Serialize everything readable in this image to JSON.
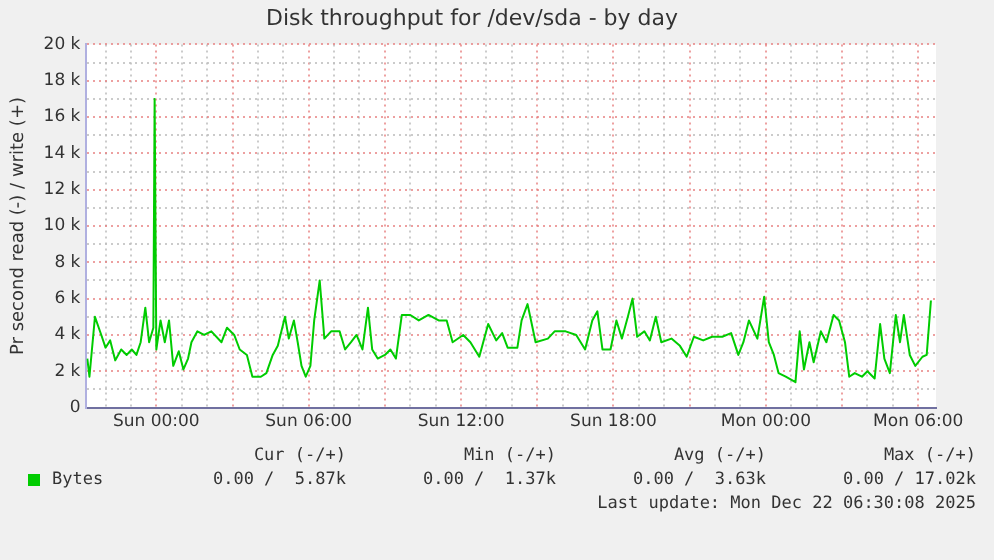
{
  "chart_data": {
    "type": "line",
    "title": "Disk throughput for /dev/sda - by day",
    "ylabel": "Pr second read (-) / write (+)",
    "x": [
      "2025-12-20T21:17",
      "2025-12-20T21:22",
      "2025-12-20T21:35",
      "2025-12-20T21:50",
      "2025-12-20T22:00",
      "2025-12-20T22:11",
      "2025-12-20T22:23",
      "2025-12-20T22:37",
      "2025-12-20T22:50",
      "2025-12-20T23:02",
      "2025-12-20T23:13",
      "2025-12-20T23:23",
      "2025-12-20T23:34",
      "2025-12-20T23:43",
      "2025-12-20T23:53",
      "2025-12-20T23:56",
      "2025-12-21T00:00",
      "2025-12-21T00:10",
      "2025-12-21T00:20",
      "2025-12-21T00:30",
      "2025-12-21T00:40",
      "2025-12-21T00:53",
      "2025-12-21T01:04",
      "2025-12-21T01:15",
      "2025-12-21T01:23",
      "2025-12-21T01:37",
      "2025-12-21T01:53",
      "2025-12-21T02:10",
      "2025-12-21T02:34",
      "2025-12-21T02:47",
      "2025-12-21T03:04",
      "2025-12-21T03:17",
      "2025-12-21T03:34",
      "2025-12-21T03:47",
      "2025-12-21T04:07",
      "2025-12-21T04:20",
      "2025-12-21T04:35",
      "2025-12-21T04:47",
      "2025-12-21T05:04",
      "2025-12-21T05:13",
      "2025-12-21T05:25",
      "2025-12-21T05:34",
      "2025-12-21T05:43",
      "2025-12-21T05:53",
      "2025-12-21T06:04",
      "2025-12-21T06:13",
      "2025-12-21T06:26",
      "2025-12-21T06:37",
      "2025-12-21T06:53",
      "2025-12-21T07:13",
      "2025-12-21T07:26",
      "2025-12-21T07:40",
      "2025-12-21T07:53",
      "2025-12-21T08:07",
      "2025-12-21T08:20",
      "2025-12-21T08:30",
      "2025-12-21T08:43",
      "2025-12-21T09:00",
      "2025-12-21T09:13",
      "2025-12-21T09:26",
      "2025-12-21T09:40",
      "2025-12-21T10:00",
      "2025-12-21T10:20",
      "2025-12-21T10:43",
      "2025-12-21T11:07",
      "2025-12-21T11:26",
      "2025-12-21T11:40",
      "2025-12-21T12:05",
      "2025-12-21T12:22",
      "2025-12-21T12:43",
      "2025-12-21T13:04",
      "2025-12-21T13:23",
      "2025-12-21T13:37",
      "2025-12-21T13:50",
      "2025-12-21T14:13",
      "2025-12-21T14:23",
      "2025-12-21T14:37",
      "2025-12-21T14:47",
      "2025-12-21T14:56",
      "2025-12-21T15:25",
      "2025-12-21T15:41",
      "2025-12-21T16:07",
      "2025-12-21T16:32",
      "2025-12-21T16:53",
      "2025-12-21T17:10",
      "2025-12-21T17:22",
      "2025-12-21T17:34",
      "2025-12-21T17:53",
      "2025-12-21T18:07",
      "2025-12-21T18:20",
      "2025-12-21T18:34",
      "2025-12-21T18:45",
      "2025-12-21T18:56",
      "2025-12-21T19:13",
      "2025-12-21T19:26",
      "2025-12-21T19:40",
      "2025-12-21T19:53",
      "2025-12-21T20:17",
      "2025-12-21T20:37",
      "2025-12-21T20:53",
      "2025-12-21T21:10",
      "2025-12-21T21:32",
      "2025-12-21T21:53",
      "2025-12-21T22:17",
      "2025-12-21T22:38",
      "2025-12-21T22:55",
      "2025-12-21T23:07",
      "2025-12-21T23:20",
      "2025-12-21T23:40",
      "2025-12-21T23:56",
      "2025-12-22T00:07",
      "2025-12-22T00:19",
      "2025-12-22T00:30",
      "2025-12-22T00:47",
      "2025-12-22T01:10",
      "2025-12-22T01:20",
      "2025-12-22T01:30",
      "2025-12-22T01:43",
      "2025-12-22T01:53",
      "2025-12-22T02:10",
      "2025-12-22T02:23",
      "2025-12-22T02:40",
      "2025-12-22T02:53",
      "2025-12-22T03:07",
      "2025-12-22T03:17",
      "2025-12-22T03:30",
      "2025-12-22T03:47",
      "2025-12-22T04:00",
      "2025-12-22T04:17",
      "2025-12-22T04:30",
      "2025-12-22T04:40",
      "2025-12-22T04:53",
      "2025-12-22T05:07",
      "2025-12-22T05:17",
      "2025-12-22T05:26",
      "2025-12-22T05:40",
      "2025-12-22T05:53",
      "2025-12-22T06:10",
      "2025-12-22T06:20",
      "2025-12-22T06:30"
    ],
    "series": [
      {
        "name": "Bytes",
        "color": "#00cc00",
        "values": [
          2700,
          1700,
          5000,
          4000,
          3300,
          3700,
          2600,
          3200,
          2900,
          3200,
          2900,
          3600,
          5500,
          3600,
          4400,
          17000,
          3200,
          4800,
          3600,
          4800,
          2300,
          3100,
          2100,
          2700,
          3600,
          4200,
          4000,
          4200,
          3600,
          4400,
          4000,
          3200,
          2900,
          1700,
          1700,
          1900,
          2900,
          3400,
          5000,
          3800,
          4800,
          3600,
          2300,
          1700,
          2300,
          4800,
          7000,
          3800,
          4200,
          4200,
          3200,
          3600,
          4000,
          3200,
          5500,
          3200,
          2700,
          2900,
          3200,
          2700,
          5100,
          5100,
          4800,
          5100,
          4800,
          4800,
          3600,
          4000,
          3600,
          2800,
          4600,
          3700,
          4100,
          3300,
          3300,
          4800,
          5700,
          4600,
          3600,
          3800,
          4200,
          4200,
          4000,
          3200,
          4800,
          5300,
          3200,
          3200,
          4800,
          3800,
          5000,
          6000,
          3900,
          4200,
          3700,
          5000,
          3600,
          3800,
          3400,
          2800,
          3900,
          3700,
          3900,
          3900,
          4100,
          2900,
          3600,
          4800,
          3800,
          6100,
          3600,
          2900,
          1900,
          1700,
          1400,
          4200,
          2100,
          3600,
          2500,
          4200,
          3600,
          5100,
          4800,
          3600,
          1700,
          1900,
          1700,
          2000,
          1600,
          4600,
          2700,
          1900,
          5100,
          3600,
          5100,
          2900,
          2300,
          2800,
          2900,
          5900
        ]
      }
    ],
    "xlim": [
      "2025-12-20T21:15",
      "2025-12-22T06:42"
    ],
    "xticks": [
      {
        "value": "2025-12-20T22:00",
        "label": null
      },
      {
        "value": "2025-12-20T23:00",
        "label": null
      },
      {
        "value": "2025-12-21T00:00",
        "label": "Sun 00:00"
      },
      {
        "value": "2025-12-21T01:00",
        "label": null
      },
      {
        "value": "2025-12-21T02:00",
        "label": null
      },
      {
        "value": "2025-12-21T03:00",
        "label": null
      },
      {
        "value": "2025-12-21T04:00",
        "label": null
      },
      {
        "value": "2025-12-21T05:00",
        "label": null
      },
      {
        "value": "2025-12-21T06:00",
        "label": "Sun 06:00"
      },
      {
        "value": "2025-12-21T07:00",
        "label": null
      },
      {
        "value": "2025-12-21T08:00",
        "label": null
      },
      {
        "value": "2025-12-21T09:00",
        "label": null
      },
      {
        "value": "2025-12-21T10:00",
        "label": null
      },
      {
        "value": "2025-12-21T11:00",
        "label": null
      },
      {
        "value": "2025-12-21T12:00",
        "label": "Sun 12:00"
      },
      {
        "value": "2025-12-21T13:00",
        "label": null
      },
      {
        "value": "2025-12-21T14:00",
        "label": null
      },
      {
        "value": "2025-12-21T15:00",
        "label": null
      },
      {
        "value": "2025-12-21T16:00",
        "label": null
      },
      {
        "value": "2025-12-21T17:00",
        "label": null
      },
      {
        "value": "2025-12-21T18:00",
        "label": "Sun 18:00"
      },
      {
        "value": "2025-12-21T19:00",
        "label": null
      },
      {
        "value": "2025-12-21T20:00",
        "label": null
      },
      {
        "value": "2025-12-21T21:00",
        "label": null
      },
      {
        "value": "2025-12-21T22:00",
        "label": null
      },
      {
        "value": "2025-12-21T23:00",
        "label": null
      },
      {
        "value": "2025-12-22T00:00",
        "label": "Mon 00:00"
      },
      {
        "value": "2025-12-22T01:00",
        "label": null
      },
      {
        "value": "2025-12-22T02:00",
        "label": null
      },
      {
        "value": "2025-12-22T03:00",
        "label": null
      },
      {
        "value": "2025-12-22T04:00",
        "label": null
      },
      {
        "value": "2025-12-22T05:00",
        "label": null
      },
      {
        "value": "2025-12-22T06:00",
        "label": "Mon 06:00"
      }
    ],
    "ylim": [
      0,
      20000
    ],
    "yticks": [
      {
        "value": 0,
        "label": "0"
      },
      {
        "value": 1000,
        "label": null
      },
      {
        "value": 2000,
        "label": "2 k"
      },
      {
        "value": 3000,
        "label": null
      },
      {
        "value": 4000,
        "label": "4 k"
      },
      {
        "value": 5000,
        "label": null
      },
      {
        "value": 6000,
        "label": "6 k"
      },
      {
        "value": 7000,
        "label": null
      },
      {
        "value": 8000,
        "label": "8 k"
      },
      {
        "value": 9000,
        "label": null
      },
      {
        "value": 10000,
        "label": "10 k"
      },
      {
        "value": 11000,
        "label": null
      },
      {
        "value": 12000,
        "label": "12 k"
      },
      {
        "value": 13000,
        "label": null
      },
      {
        "value": 14000,
        "label": "14 k"
      },
      {
        "value": 15000,
        "label": null
      },
      {
        "value": 16000,
        "label": "16 k"
      },
      {
        "value": 17000,
        "label": null
      },
      {
        "value": 18000,
        "label": "18 k"
      },
      {
        "value": 19000,
        "label": null
      },
      {
        "value": 20000,
        "label": "20 k"
      }
    ],
    "grid": true,
    "legend": "bottom left",
    "marker": "none",
    "line_style": "solid",
    "annotations": [
      "Cur (-/+)",
      "Min (-/+)",
      "Avg (-/+)",
      "Max (-/+)",
      "0.00 /  5.87k",
      "0.00 /  1.37k",
      "0.00 /  3.63k",
      "0.00 / 17.02k",
      "Last update: Mon Dec 22 06:30:08 2025"
    ]
  }
}
